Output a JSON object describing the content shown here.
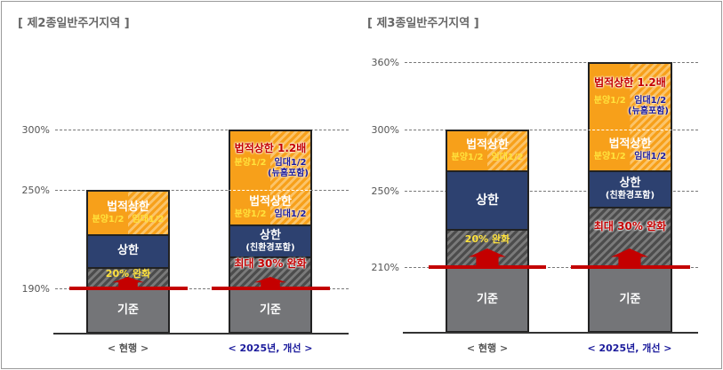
{
  "panels": [
    {
      "title": "[ 제2종일반주거지역 ]",
      "ticks": [
        "300%",
        "250%",
        "190%"
      ],
      "current": {
        "label": "< 현행 >",
        "base": "기준",
        "relax": "20% 완화",
        "upper": "상한",
        "legal": "법적상한",
        "sale": "분양1/2",
        "rent": "임대1/2"
      },
      "improved": {
        "label": "< 2025년, 개선 >",
        "base": "기준",
        "relax": "최대 30% 완화",
        "upper": "상한",
        "upper_note": "(친환경포함)",
        "legal": "법적상한",
        "sale": "분양1/2",
        "rent": "임대1/2",
        "legal2": "법적상한 1.2배",
        "sale2": "분양1/2",
        "rent2": "임대1/2",
        "rent2_note": "(뉴홈포함)"
      }
    },
    {
      "title": "[ 제3종일반주거지역 ]",
      "ticks": [
        "360%",
        "300%",
        "250%",
        "210%"
      ],
      "current": {
        "label": "< 현행 >",
        "base": "기준",
        "relax": "20% 완화",
        "upper": "상한",
        "legal": "법적상한",
        "sale": "분양1/2",
        "rent": "임대1/2"
      },
      "improved": {
        "label": "< 2025년, 개선 >",
        "base": "기준",
        "relax": "최대 30% 완화",
        "upper": "상한",
        "upper_note": "(친환경포함)",
        "legal": "법적상한",
        "sale": "분양1/2",
        "rent": "임대1/2",
        "legal2": "법적상한 1.2배",
        "sale2": "분양1/2",
        "rent2": "임대1/2",
        "rent2_note": "(뉴홈포함)"
      }
    }
  ],
  "colors": {
    "base": "#747578",
    "upper": "#2d4170",
    "legal": "#f7a01a",
    "red": "#c40000",
    "improved_label": "#1b1b9c"
  }
}
